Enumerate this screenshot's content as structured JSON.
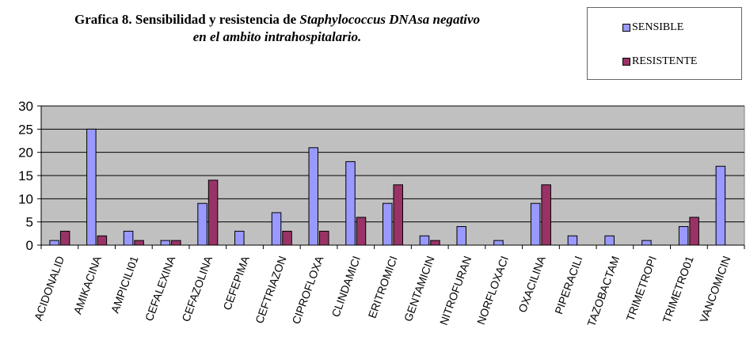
{
  "title": {
    "part1": "Grafica 8. Sensibilidad y resistencia de ",
    "species": "Staphylococcus DNAsa negativo",
    "line2": "en el ambito intrahospitalario."
  },
  "colors": {
    "sensible": "#9999FF",
    "resistente": "#993366",
    "plot_bg": "#C0C0C0"
  },
  "chart_data": {
    "type": "bar",
    "categories": [
      "ACIDONALID",
      "AMIKACINA",
      "AMPICILI01",
      "CEFALEXINA",
      "CEFAZOLINA",
      "CEFEPIMA",
      "CEFTRIAZON",
      "CIPROFLOXA",
      "CLINDAMICI",
      "ERITROMICI",
      "GENTAMICIN",
      "NITROFURAN",
      "NORFLOXACI",
      "OXACILINA",
      "PIPERACILI",
      "TAZOBACTAM",
      "TRIMETROPI",
      "TRIMETRO01",
      "VANCOMICIN"
    ],
    "series": [
      {
        "name": "SENSIBLE",
        "values": [
          1,
          25,
          3,
          1,
          9,
          3,
          7,
          21,
          18,
          9,
          2,
          4,
          1,
          9,
          2,
          2,
          1,
          4,
          17
        ]
      },
      {
        "name": "RESISTENTE",
        "values": [
          3,
          2,
          1,
          1,
          14,
          0,
          3,
          3,
          6,
          13,
          1,
          0,
          0,
          13,
          0,
          0,
          0,
          6,
          0
        ]
      }
    ],
    "ylim": [
      0,
      30
    ],
    "yticks": [
      0,
      5,
      10,
      15,
      20,
      25,
      30
    ],
    "grid": true,
    "legend_position": "top-right"
  }
}
